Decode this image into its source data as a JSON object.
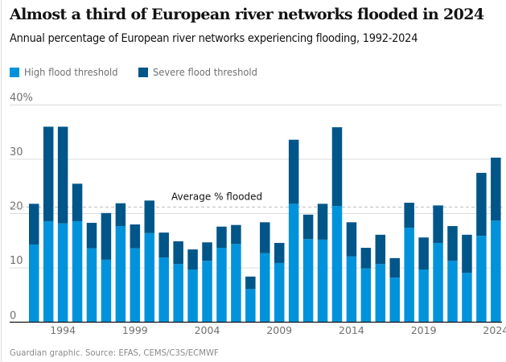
{
  "colors": {
    "high": "#0093db",
    "severe": "#005689",
    "grid": "#dcdcdc",
    "average_line": "#bdbdbd",
    "axis": "#121212",
    "tick_text": "#707070"
  },
  "chart_data": {
    "type": "bar",
    "stacked": true,
    "title": "Almost a third of European river networks flooded in 2024",
    "subtitle": "Annual percentage of European river networks experiencing flooding, 1992-2024",
    "xlabel": "",
    "ylabel": "",
    "ylim": [
      0,
      40
    ],
    "yticks": [
      0,
      10,
      20,
      30,
      40
    ],
    "ytick_labels": [
      "0",
      "10",
      "20",
      "30",
      "40%"
    ],
    "grid": true,
    "legend_position": "top-left",
    "categories": [
      "1992",
      "1993",
      "1994",
      "1995",
      "1996",
      "1997",
      "1998",
      "1999",
      "2000",
      "2001",
      "2002",
      "2003",
      "2004",
      "2005",
      "2006",
      "2007",
      "2008",
      "2009",
      "2010",
      "2011",
      "2012",
      "2013",
      "2014",
      "2015",
      "2016",
      "2017",
      "2018",
      "2019",
      "2020",
      "2021",
      "2022",
      "2023",
      "2024"
    ],
    "xtick_labels": [
      "1994",
      "1999",
      "2004",
      "2009",
      "2014",
      "2019",
      "2024"
    ],
    "series": [
      {
        "name": "High flood threshold",
        "color_key": "high",
        "values": [
          14.3,
          18.6,
          18.2,
          18.6,
          13.6,
          11.5,
          17.7,
          13.6,
          16.4,
          11.9,
          10.7,
          9.7,
          11.3,
          13.7,
          14.4,
          6.1,
          12.7,
          10.9,
          21.8,
          15.3,
          15.2,
          21.4,
          12.1,
          9.9,
          10.7,
          8.2,
          17.4,
          9.7,
          14.6,
          11.3,
          9.1,
          15.9,
          18.7
        ]
      },
      {
        "name": "Severe flood threshold",
        "color_key": "severe",
        "values": [
          7.5,
          17.4,
          17.8,
          6.9,
          4.7,
          8.6,
          4.2,
          4.4,
          6.0,
          4.6,
          4.2,
          3.7,
          3.4,
          3.9,
          3.5,
          2.3,
          5.7,
          3.7,
          11.8,
          4.5,
          6.6,
          14.5,
          6.3,
          3.8,
          5.4,
          3.6,
          4.6,
          5.9,
          6.9,
          6.4,
          7.0,
          11.6,
          11.6
        ]
      }
    ],
    "totals": [
      21.8,
      36.0,
      36.0,
      25.5,
      18.3,
      20.1,
      21.9,
      18.0,
      22.4,
      16.5,
      14.9,
      13.4,
      14.7,
      17.6,
      17.9,
      8.4,
      18.4,
      14.6,
      33.6,
      19.8,
      21.8,
      35.9,
      18.4,
      13.7,
      16.1,
      11.8,
      22.0,
      15.6,
      21.5,
      17.7,
      16.1,
      27.5,
      30.3
    ],
    "annotations": [
      {
        "type": "hline",
        "value": 21.2,
        "label": "Average % flooded",
        "style": "dashed"
      }
    ],
    "source": "Guardian graphic. Source: EFAS, CEMS/C3S/ECMWF"
  }
}
